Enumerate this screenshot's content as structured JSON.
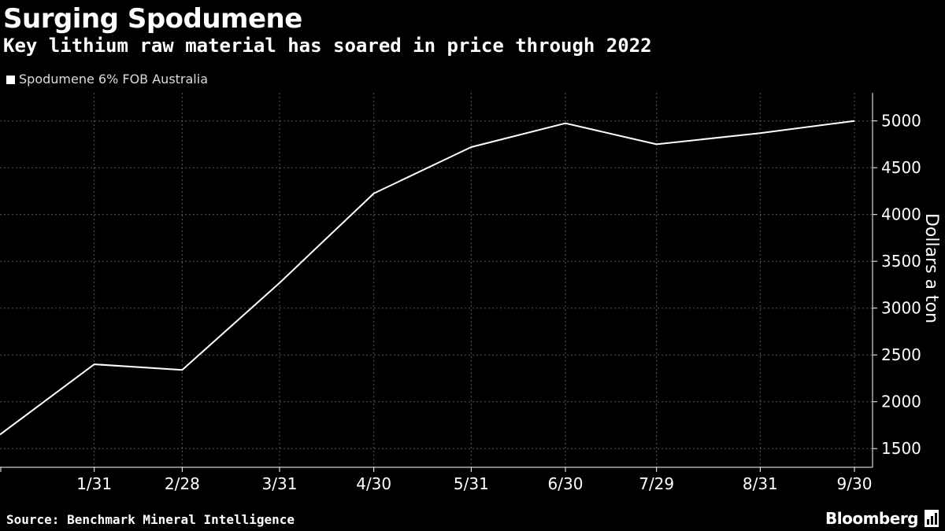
{
  "header": {
    "title": "Surging Spodumene",
    "subtitle": "Key lithium raw material has soared in price through 2022"
  },
  "footer": {
    "source": "Source: Benchmark Mineral Intelligence",
    "brand": "Bloomberg"
  },
  "colors": {
    "background": "#000000",
    "line": "#ffffff",
    "grid": "#5a5a5a",
    "text": "#ffffff"
  },
  "chart_data": {
    "type": "line",
    "legend_position": "top-left",
    "grid": true,
    "ylabel": "Dollars a ton",
    "ylim": [
      1300,
      5300
    ],
    "yticks": [
      1500,
      2000,
      2500,
      3000,
      3500,
      4000,
      4500,
      5000
    ],
    "xticks": [
      "1/31",
      "2/28",
      "3/31",
      "4/30",
      "5/31",
      "6/30",
      "7/29",
      "8/31",
      "9/30"
    ],
    "x_start": "1/1",
    "series": [
      {
        "name": "Spodumene 6% FOB Australia",
        "x": [
          "1/1",
          "1/31",
          "2/28",
          "3/31",
          "4/30",
          "5/31",
          "6/30",
          "7/29",
          "8/31",
          "9/30"
        ],
        "y": [
          1650,
          2400,
          2340,
          3270,
          4225,
          4720,
          4975,
          4750,
          4870,
          5000
        ]
      }
    ]
  }
}
